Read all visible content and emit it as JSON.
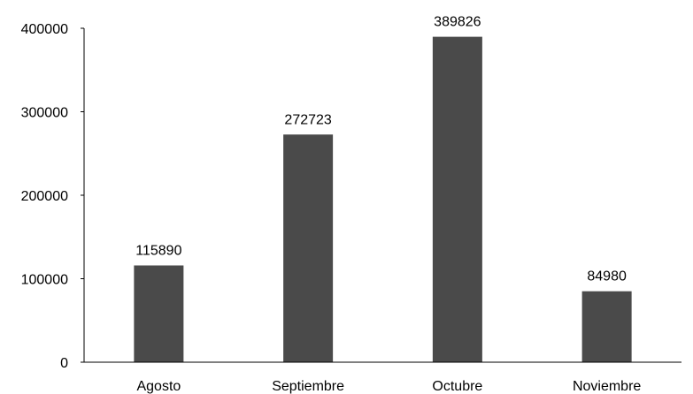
{
  "chart_data": {
    "type": "bar",
    "title": "",
    "xlabel": "",
    "ylabel": "",
    "categories": [
      "Agosto",
      "Septiembre",
      "Octubre",
      "Noviembre"
    ],
    "values": [
      115890,
      272723,
      389826,
      84980
    ],
    "data_labels": [
      "115890",
      "272723",
      "389826",
      "84980"
    ],
    "ylim": [
      0,
      400000
    ],
    "yticks": [
      0,
      100000,
      200000,
      300000,
      400000
    ],
    "ytick_labels": [
      "0",
      "100000",
      "200000",
      "300000",
      "400000"
    ],
    "grid": false,
    "legend": "none",
    "bar_color": "#4a4a4a",
    "axis_color": "#000000"
  }
}
